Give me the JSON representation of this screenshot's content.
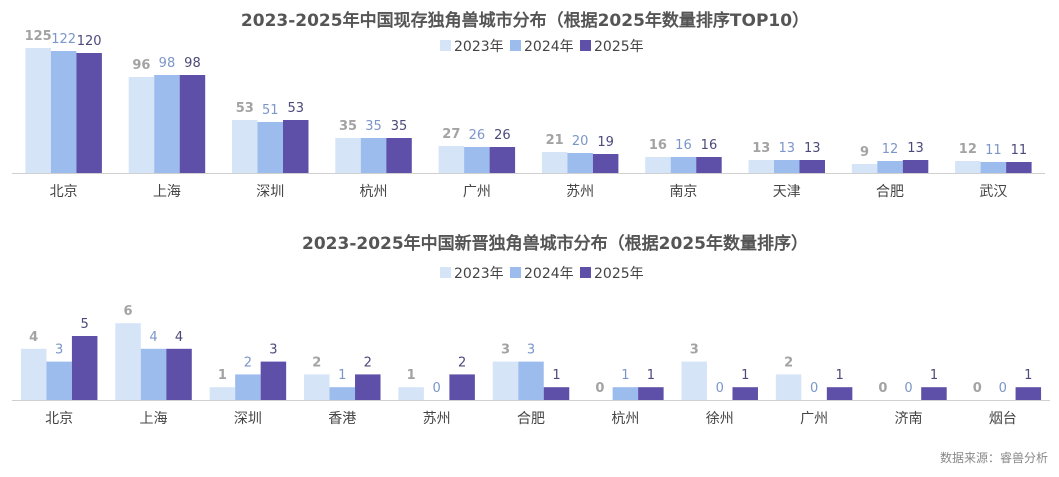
{
  "colors": {
    "2023": "#d6e4f8",
    "2024": "#9dbcee",
    "2025": "#5e50a8"
  },
  "label_colors": {
    "2023": "#a3a3a3",
    "2024": "#7b96c8",
    "2025": "#4b4a7a"
  },
  "source": "数据来源：睿兽分析",
  "chart_data": [
    {
      "type": "bar",
      "title": "2023-2025年中国现存独角兽城市分布（根据2025年数量排序TOP10）",
      "categories": [
        "北京",
        "上海",
        "深圳",
        "杭州",
        "广州",
        "苏州",
        "南京",
        "天津",
        "合肥",
        "武汉"
      ],
      "series": [
        {
          "name": "2023年",
          "values": [
            125,
            96,
            53,
            35,
            27,
            21,
            16,
            13,
            9,
            12
          ]
        },
        {
          "name": "2024年",
          "values": [
            122,
            98,
            51,
            35,
            26,
            20,
            16,
            13,
            12,
            11
          ]
        },
        {
          "name": "2025年",
          "values": [
            120,
            98,
            53,
            35,
            26,
            19,
            16,
            13,
            13,
            11
          ]
        }
      ],
      "legend": "top-center",
      "grid": false
    },
    {
      "type": "bar",
      "title": "2023-2025年中国新晋独角兽城市分布（根据2025年数量排序）",
      "categories": [
        "北京",
        "上海",
        "深圳",
        "香港",
        "苏州",
        "合肥",
        "杭州",
        "徐州",
        "广州",
        "济南",
        "烟台"
      ],
      "series": [
        {
          "name": "2023年",
          "values": [
            4,
            6,
            1,
            2,
            1,
            3,
            0,
            3,
            2,
            0,
            0
          ]
        },
        {
          "name": "2024年",
          "values": [
            3,
            4,
            2,
            1,
            0,
            3,
            1,
            0,
            0,
            0,
            0
          ]
        },
        {
          "name": "2025年",
          "values": [
            5,
            4,
            3,
            2,
            2,
            1,
            1,
            1,
            1,
            1,
            1
          ]
        }
      ],
      "legend": "top-center",
      "grid": false
    }
  ]
}
